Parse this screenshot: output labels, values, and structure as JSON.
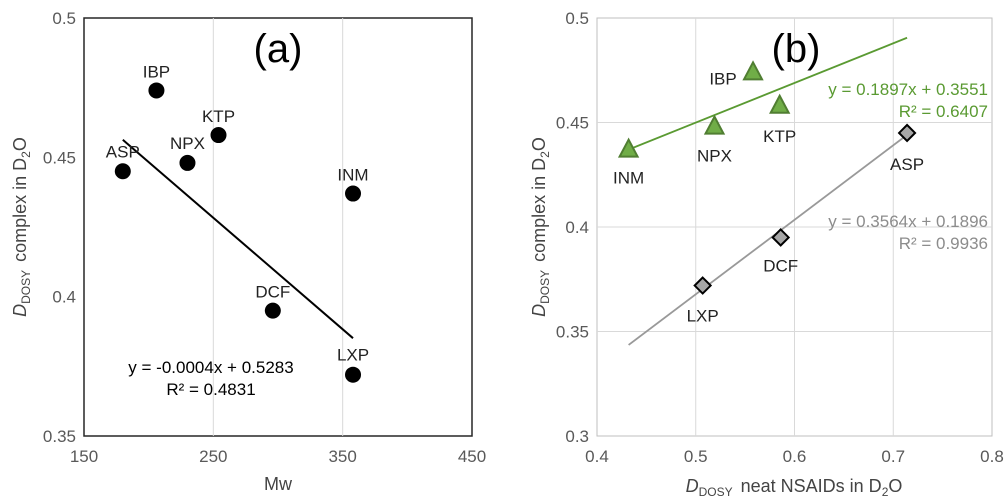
{
  "chart_data": [
    {
      "type": "scatter",
      "panel_label": "(a)",
      "xlabel": "Mw",
      "ylabel_main": "D",
      "ylabel_sub": "DOSY",
      "ylabel_rest": "complex in D",
      "ylabel_sub2": "2",
      "ylabel_end": "O",
      "xlim": [
        150,
        450
      ],
      "ylim": [
        0.35,
        0.5
      ],
      "xticks": [
        150,
        250,
        350,
        450
      ],
      "yticks": [
        0.35,
        0.4,
        0.45,
        0.5
      ],
      "xtick_labels": [
        "150",
        "250",
        "350",
        "450"
      ],
      "ytick_labels": [
        "0.35",
        "0.4",
        "0.45",
        "0.5"
      ],
      "grid": "vertical",
      "series": [
        {
          "points": [
            {
              "label": "ASP",
              "x": 180,
              "y": 0.445
            },
            {
              "label": "IBP",
              "x": 206,
              "y": 0.474
            },
            {
              "label": "NPX",
              "x": 230,
              "y": 0.448
            },
            {
              "label": "KTP",
              "x": 254,
              "y": 0.458
            },
            {
              "label": "INM",
              "x": 358,
              "y": 0.437
            },
            {
              "label": "DCF",
              "x": 296,
              "y": 0.395
            },
            {
              "label": "LXP",
              "x": 358,
              "y": 0.372
            }
          ],
          "trendline": {
            "slope": -0.0004,
            "intercept": 0.5283,
            "x_range": [
              180,
              358
            ]
          },
          "equation": "y = -0.0004x + 0.5283",
          "r2": "R² = 0.4831"
        }
      ]
    },
    {
      "type": "scatter",
      "panel_label": "(b)",
      "xlabel_main": "D",
      "xlabel_sub": "DOSY",
      "xlabel_rest": "neat NSAIDs in D",
      "xlabel_sub2": "2",
      "xlabel_end": "O",
      "ylabel_main": "D",
      "ylabel_sub": "DOSY",
      "ylabel_rest": "complex in D",
      "ylabel_sub2": "2",
      "ylabel_end": "O",
      "xlim": [
        0.4,
        0.8
      ],
      "ylim": [
        0.3,
        0.5
      ],
      "xticks": [
        0.4,
        0.5,
        0.6,
        0.7,
        0.8
      ],
      "yticks": [
        0.3,
        0.35,
        0.4,
        0.45,
        0.5
      ],
      "xtick_labels": [
        "0.4",
        "0.5",
        "0.6",
        "0.7",
        "0.8"
      ],
      "ytick_labels": [
        "0.3",
        "0.35",
        "0.4",
        "0.45",
        "0.5"
      ],
      "grid": "both",
      "series": [
        {
          "marker": "triangle",
          "color": "#70ad47",
          "edge": "#507e32",
          "line_color": "#5a9a32",
          "points": [
            {
              "label": "INM",
              "x": 0.432,
              "y": 0.437
            },
            {
              "label": "NPX",
              "x": 0.519,
              "y": 0.448
            },
            {
              "label": "IBP",
              "x": 0.558,
              "y": 0.474
            },
            {
              "label": "KTP",
              "x": 0.585,
              "y": 0.458
            }
          ],
          "trendline": {
            "slope": 0.1897,
            "intercept": 0.3551,
            "x_range": [
              0.432,
              0.714
            ]
          },
          "equation": "y = 0.1897x + 0.3551",
          "r2": "R² = 0.6407"
        },
        {
          "marker": "diamond",
          "color": "#a6a6a6",
          "edge": "#000000",
          "line_color": "#999999",
          "points": [
            {
              "label": "LXP",
              "x": 0.507,
              "y": 0.372
            },
            {
              "label": "DCF",
              "x": 0.586,
              "y": 0.395
            },
            {
              "label": "ASP",
              "x": 0.714,
              "y": 0.445
            }
          ],
          "trendline": {
            "slope": 0.3564,
            "intercept": 0.1896,
            "x_range": [
              0.432,
              0.714
            ]
          },
          "equation": "y = 0.3564x + 0.1896",
          "r2": "R² = 0.9936"
        }
      ]
    }
  ]
}
